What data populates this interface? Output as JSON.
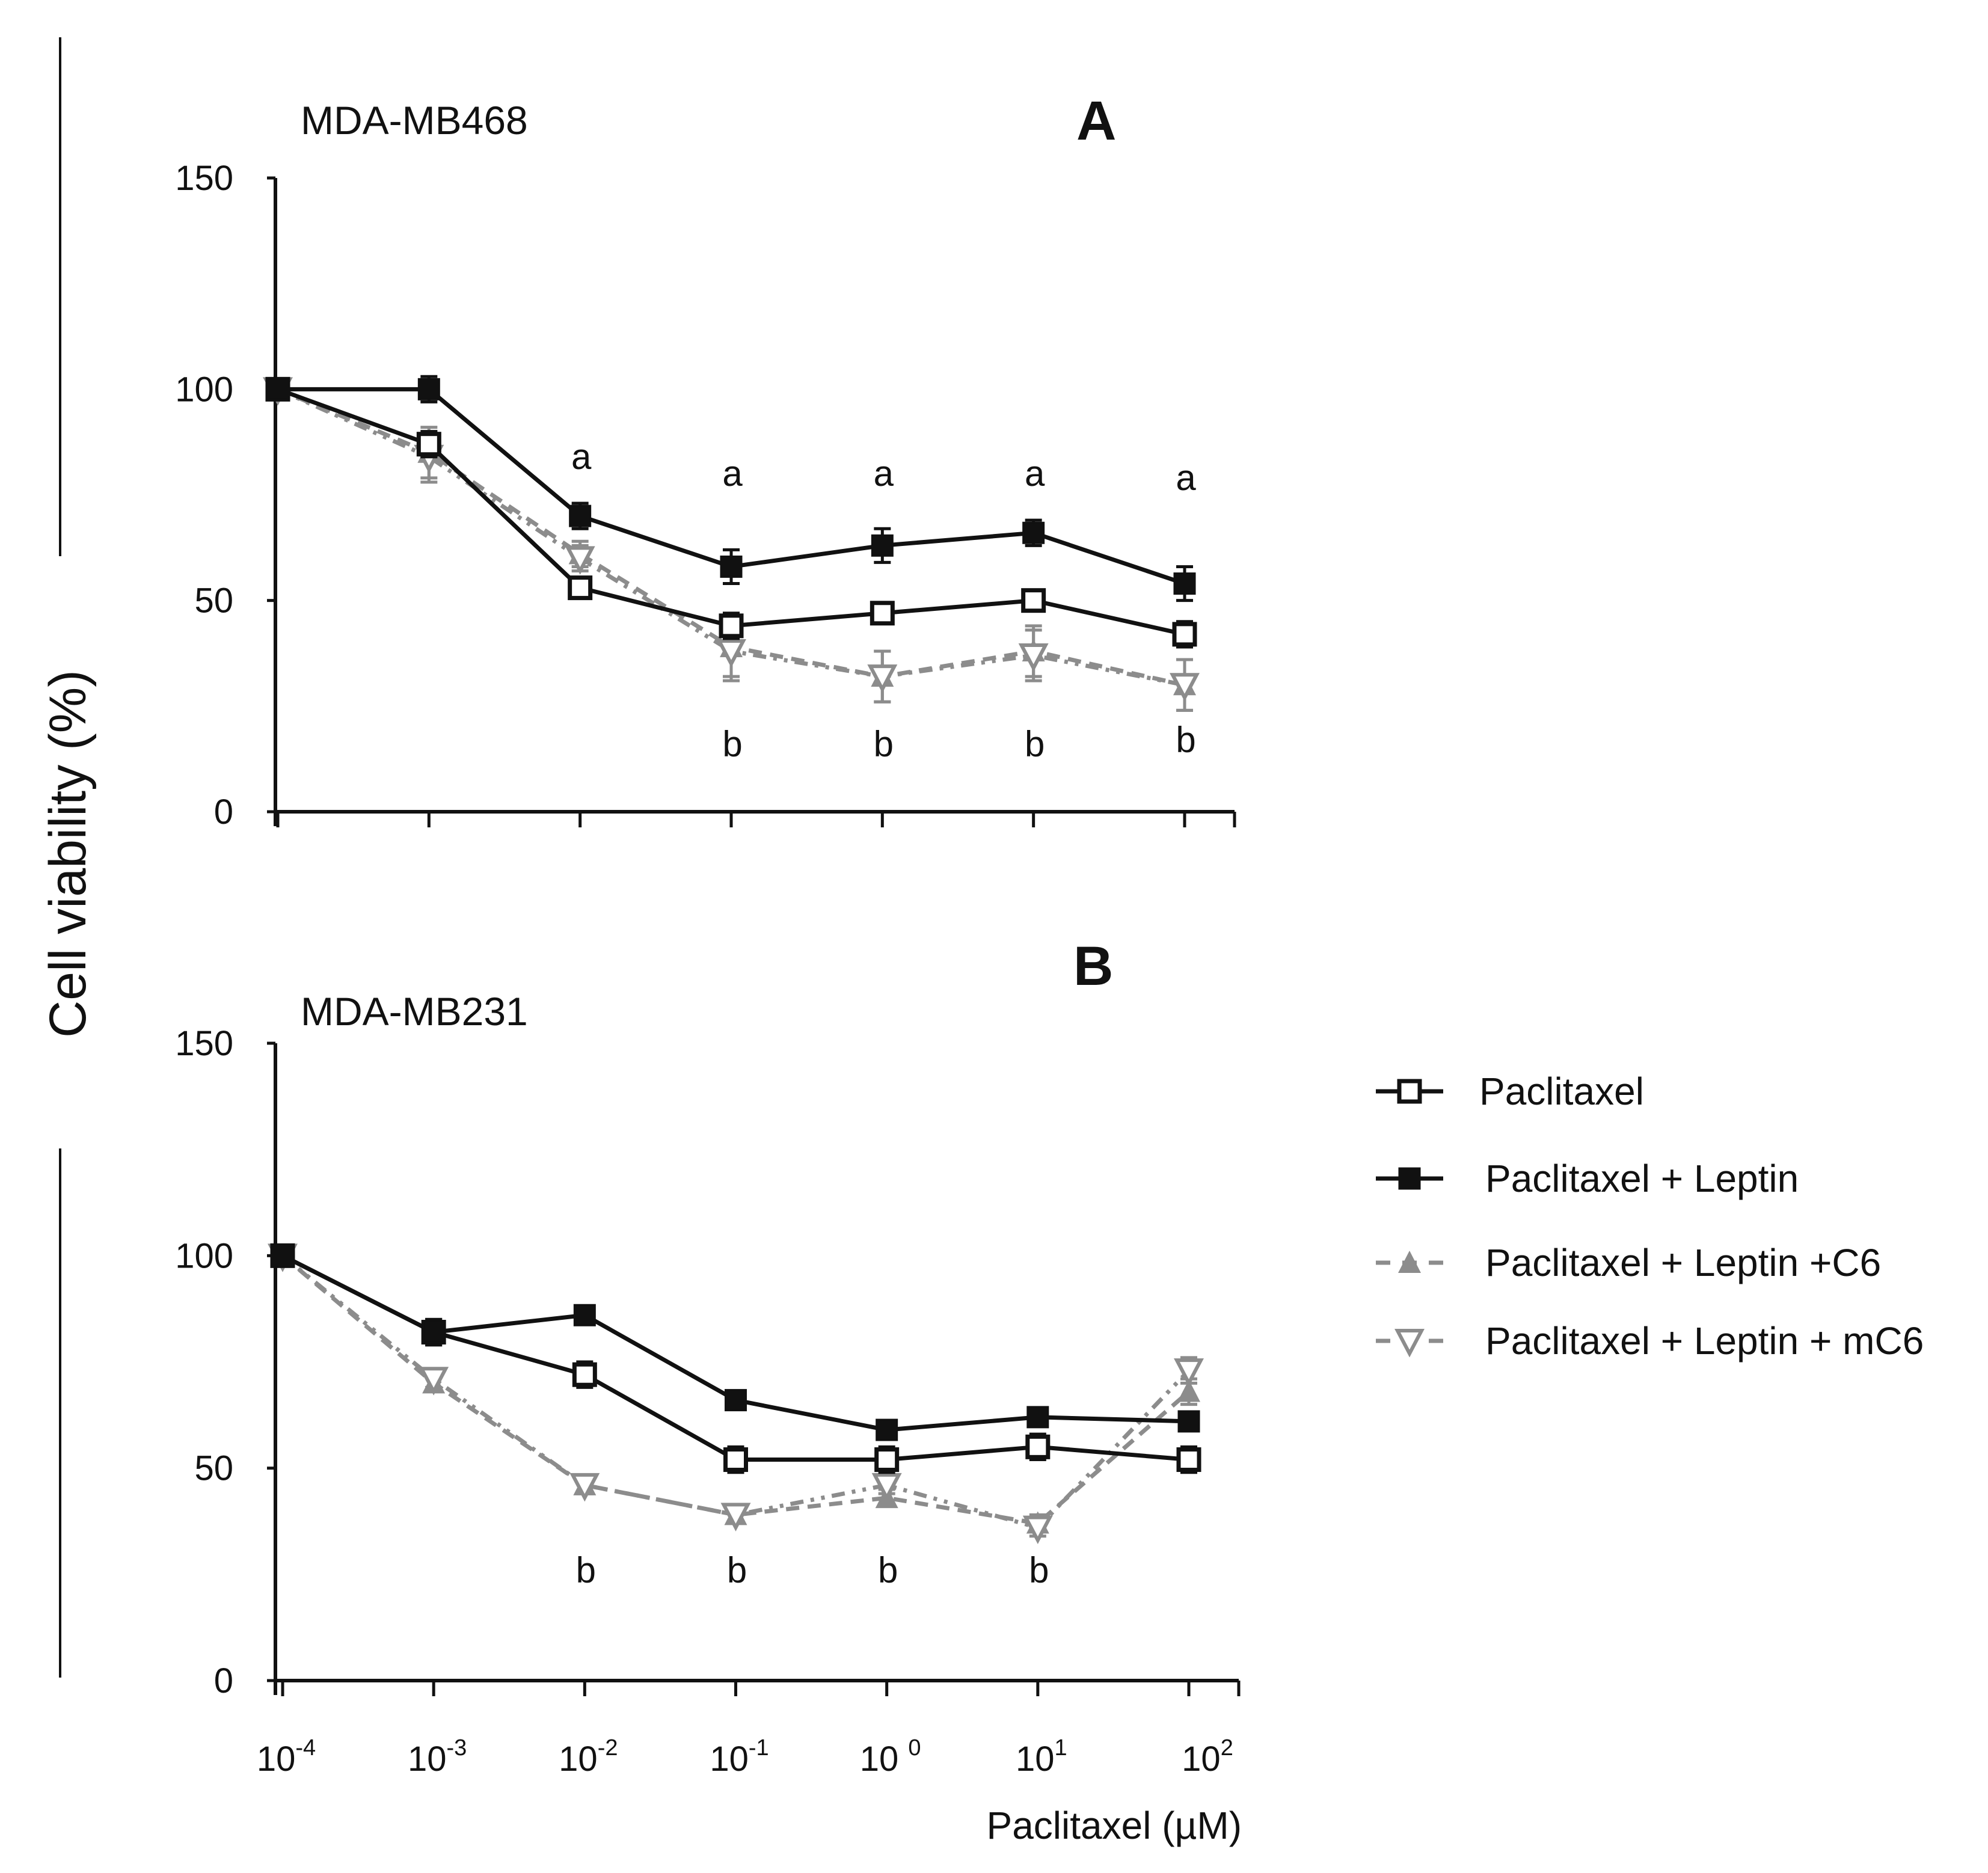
{
  "figure": {
    "ylabel": "Cell viability (%)",
    "xlabel": "Paclitaxel (µM)"
  },
  "legend": [
    {
      "name": "Paclitaxel",
      "marker": "open-square",
      "color": "#111111",
      "dash": "solid"
    },
    {
      "name": "Paclitaxel + Leptin",
      "marker": "filled-square",
      "color": "#111111",
      "dash": "solid"
    },
    {
      "name": "Paclitaxel + Leptin +C6",
      "marker": "triangle-up",
      "color": "#8c8c8c",
      "dash": "dashed"
    },
    {
      "name": "Paclitaxel + Leptin + mC6",
      "marker": "triangle-down",
      "color": "#8c8c8c",
      "dash": "dashdotdot"
    }
  ],
  "chart_data": [
    {
      "type": "line",
      "panel": "A",
      "title": "MDA-MB468",
      "x": [
        "10-4",
        "10-3",
        "10-2",
        "10-1",
        "10 0",
        "10 1",
        "10 2"
      ],
      "x_ticks": [
        {
          "base": "10",
          "exp": "-4"
        },
        {
          "base": "10",
          "exp": "-3"
        },
        {
          "base": "10",
          "exp": "-2"
        },
        {
          "base": "10",
          "exp": "-1"
        },
        {
          "base": "10 ",
          "exp": "0"
        },
        {
          "base": "10",
          "exp": "1"
        },
        {
          "base": "10",
          "exp": "2"
        }
      ],
      "ylim": [
        0,
        150
      ],
      "yticks": [
        0,
        50,
        100,
        150
      ],
      "grid": false,
      "series": [
        {
          "name": "Paclitaxel",
          "values": [
            100,
            87,
            53,
            44,
            47,
            50,
            42
          ],
          "errors": [
            2,
            3,
            2,
            3,
            2,
            2,
            3
          ]
        },
        {
          "name": "Paclitaxel + Leptin",
          "values": [
            100,
            100,
            70,
            58,
            63,
            66,
            54
          ],
          "errors": [
            2,
            3,
            3,
            4,
            4,
            3,
            4
          ]
        },
        {
          "name": "Paclitaxel + Leptin +C6",
          "values": [
            100,
            85,
            61,
            39,
            32,
            38,
            30
          ],
          "errors": [
            2,
            6,
            3,
            7,
            6,
            6,
            6
          ]
        },
        {
          "name": "Paclitaxel + Leptin + mC6",
          "values": [
            100,
            84,
            60,
            38,
            32,
            37,
            30
          ],
          "errors": [
            2,
            6,
            3,
            7,
            6,
            6,
            6
          ]
        }
      ],
      "annotations": [
        {
          "text": "a",
          "x": "10-2",
          "y": 84
        },
        {
          "text": "a",
          "x": "10-1",
          "y": 80
        },
        {
          "text": "a",
          "x": "10 0",
          "y": 80
        },
        {
          "text": "a",
          "x": "10 1",
          "y": 80
        },
        {
          "text": "a",
          "x": "10 2",
          "y": 79
        },
        {
          "text": "b",
          "x": "10-1",
          "y": 16
        },
        {
          "text": "b",
          "x": "10 0",
          "y": 16
        },
        {
          "text": "b",
          "x": "10 1",
          "y": 16
        },
        {
          "text": "b",
          "x": "10 2",
          "y": 17
        }
      ]
    },
    {
      "type": "line",
      "panel": "B",
      "title": "MDA-MB231",
      "x": [
        "10-4",
        "10-3",
        "10-2",
        "10-1",
        "10 0",
        "10 1",
        "10 2"
      ],
      "x_ticks": [
        {
          "base": "10",
          "exp": "-4"
        },
        {
          "base": "10",
          "exp": "-3"
        },
        {
          "base": "10",
          "exp": "-2"
        },
        {
          "base": "10",
          "exp": "-1"
        },
        {
          "base": "10 ",
          "exp": "0"
        },
        {
          "base": "10",
          "exp": "1"
        },
        {
          "base": "10",
          "exp": "2"
        }
      ],
      "ylim": [
        0,
        150
      ],
      "yticks": [
        0,
        50,
        100,
        150
      ],
      "grid": false,
      "series": [
        {
          "name": "Paclitaxel",
          "values": [
            100,
            82,
            72,
            52,
            52,
            55,
            52
          ],
          "errors": [
            2,
            3,
            3,
            3,
            3,
            3,
            3
          ]
        },
        {
          "name": "Paclitaxel + Leptin",
          "values": [
            100,
            82,
            86,
            66,
            59,
            62,
            61
          ],
          "errors": [
            2,
            3,
            2,
            2,
            2,
            2,
            2
          ]
        },
        {
          "name": "Paclitaxel + Leptin +C6",
          "values": [
            100,
            70,
            46,
            39,
            43,
            37,
            68
          ],
          "errors": [
            2,
            2,
            2,
            2,
            2,
            2,
            3
          ]
        },
        {
          "name": "Paclitaxel + Leptin + mC6",
          "values": [
            100,
            71,
            46,
            39,
            46,
            36,
            73
          ],
          "errors": [
            2,
            2,
            2,
            2,
            2,
            2,
            3
          ]
        }
      ],
      "annotations": [
        {
          "text": "b",
          "x": "10-2",
          "y": 26
        },
        {
          "text": "b",
          "x": "10-1",
          "y": 26
        },
        {
          "text": "b",
          "x": "10 0",
          "y": 26
        },
        {
          "text": "b",
          "x": "10 1",
          "y": 26
        }
      ]
    }
  ]
}
